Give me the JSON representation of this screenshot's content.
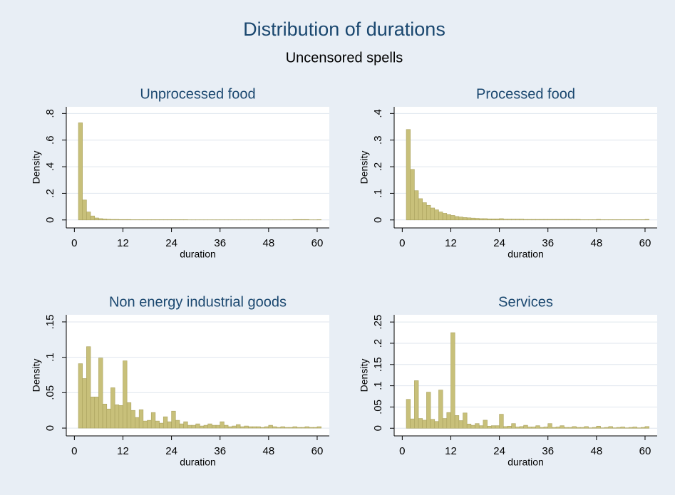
{
  "title": "Distribution of durations",
  "subtitle": "Uncensored spells",
  "chart_data": [
    {
      "type": "histogram",
      "title": "Unprocessed food",
      "xlabel": "duration",
      "ylabel": "Density",
      "color": "#c8c07a",
      "grid": true,
      "bins": [
        1,
        2,
        3,
        4,
        5,
        6,
        7,
        8,
        9,
        10,
        11,
        12,
        13,
        14,
        15,
        16,
        17,
        18,
        19,
        20,
        21,
        22,
        23,
        24,
        25,
        26,
        27,
        28,
        29,
        30,
        31,
        32,
        33,
        34,
        35,
        36,
        37,
        38,
        39,
        40,
        41,
        42,
        43,
        44,
        45,
        46,
        47,
        48,
        49,
        50,
        51,
        52,
        53,
        54,
        55,
        56,
        57,
        58,
        59,
        60,
        61
      ],
      "values": [
        0.73,
        0.15,
        0.06,
        0.03,
        0.015,
        0.01,
        0.007,
        0.005,
        0.004,
        0.004,
        0.003,
        0.003,
        0.003,
        0.002,
        0.002,
        0.002,
        0.002,
        0.002,
        0.002,
        0.002,
        0.002,
        0.002,
        0.002,
        0.002,
        0.002,
        0.002,
        0.002,
        0.001,
        0.001,
        0.001,
        0.001,
        0.001,
        0.001,
        0.001,
        0.001,
        0.001,
        0.001,
        0.001,
        0.001,
        0.001,
        0.001,
        0.001,
        0.001,
        0.001,
        0.001,
        0.001,
        0.001,
        0.001,
        0.001,
        0.001,
        0.001,
        0.001,
        0.001,
        0.003,
        0.003,
        0.003,
        0.003,
        0.001,
        0.001,
        0.002
      ],
      "xlim": [
        -2,
        63
      ],
      "ylim": [
        -0.06,
        0.85
      ],
      "xticks": [
        0,
        12,
        24,
        36,
        48,
        60
      ],
      "yticks": [
        0,
        {
          "value": 0.2,
          "label": ".2"
        },
        {
          "value": 0.4,
          "label": ".4"
        },
        {
          "value": 0.6,
          "label": ".6"
        },
        {
          "value": 0.8,
          "label": ".8"
        }
      ]
    },
    {
      "type": "histogram",
      "title": "Processed food",
      "xlabel": "duration",
      "ylabel": "Density",
      "color": "#c8c07a",
      "grid": true,
      "bins": [
        1,
        2,
        3,
        4,
        5,
        6,
        7,
        8,
        9,
        10,
        11,
        12,
        13,
        14,
        15,
        16,
        17,
        18,
        19,
        20,
        21,
        22,
        23,
        24,
        25,
        26,
        27,
        28,
        29,
        30,
        31,
        32,
        33,
        34,
        35,
        36,
        37,
        38,
        39,
        40,
        41,
        42,
        43,
        44,
        45,
        46,
        47,
        48,
        49,
        50,
        51,
        52,
        53,
        54,
        55,
        56,
        57,
        58,
        59,
        60,
        61
      ],
      "values": [
        0.34,
        0.19,
        0.11,
        0.08,
        0.065,
        0.055,
        0.045,
        0.038,
        0.03,
        0.025,
        0.02,
        0.017,
        0.013,
        0.011,
        0.009,
        0.008,
        0.007,
        0.006,
        0.005,
        0.005,
        0.004,
        0.004,
        0.004,
        0.005,
        0.003,
        0.003,
        0.003,
        0.003,
        0.003,
        0.002,
        0.002,
        0.002,
        0.002,
        0.002,
        0.002,
        0.002,
        0.002,
        0.002,
        0.002,
        0.002,
        0.002,
        0.002,
        0.002,
        0.001,
        0.001,
        0.001,
        0.001,
        0.002,
        0.001,
        0.001,
        0.001,
        0.001,
        0.001,
        0.001,
        0.001,
        0.001,
        0.001,
        0.001,
        0.001,
        0.002
      ],
      "xlim": [
        -2,
        63
      ],
      "ylim": [
        -0.03,
        0.425
      ],
      "xticks": [
        0,
        12,
        24,
        36,
        48,
        60
      ],
      "yticks": [
        0,
        {
          "value": 0.1,
          "label": ".1"
        },
        {
          "value": 0.2,
          "label": ".2"
        },
        {
          "value": 0.3,
          "label": ".3"
        },
        {
          "value": 0.4,
          "label": ".4"
        }
      ]
    },
    {
      "type": "histogram",
      "title": "Non energy industrial goods",
      "xlabel": "duration",
      "ylabel": "Density",
      "color": "#c8c07a",
      "grid": true,
      "bins": [
        1,
        2,
        3,
        4,
        5,
        6,
        7,
        8,
        9,
        10,
        11,
        12,
        13,
        14,
        15,
        16,
        17,
        18,
        19,
        20,
        21,
        22,
        23,
        24,
        25,
        26,
        27,
        28,
        29,
        30,
        31,
        32,
        33,
        34,
        35,
        36,
        37,
        38,
        39,
        40,
        41,
        42,
        43,
        44,
        45,
        46,
        47,
        48,
        49,
        50,
        51,
        52,
        53,
        54,
        55,
        56,
        57,
        58,
        59,
        60,
        61
      ],
      "values": [
        0.091,
        0.07,
        0.115,
        0.044,
        0.044,
        0.099,
        0.034,
        0.027,
        0.057,
        0.033,
        0.032,
        0.095,
        0.036,
        0.025,
        0.015,
        0.026,
        0.01,
        0.011,
        0.022,
        0.01,
        0.007,
        0.016,
        0.009,
        0.024,
        0.011,
        0.006,
        0.009,
        0.004,
        0.004,
        0.006,
        0.003,
        0.004,
        0.006,
        0.004,
        0.004,
        0.009,
        0.004,
        0.002,
        0.003,
        0.005,
        0.002,
        0.003,
        0.002,
        0.002,
        0.002,
        0.001,
        0.002,
        0.004,
        0.002,
        0.001,
        0.002,
        0.001,
        0.001,
        0.002,
        0.001,
        0.001,
        0.002,
        0.001,
        0.001,
        0.002
      ],
      "xlim": [
        -2,
        63
      ],
      "ylim": [
        -0.011,
        0.16
      ],
      "xticks": [
        0,
        12,
        24,
        36,
        48,
        60
      ],
      "yticks": [
        0,
        {
          "value": 0.05,
          "label": ".05"
        },
        {
          "value": 0.1,
          "label": ".1"
        },
        {
          "value": 0.15,
          "label": ".15"
        }
      ]
    },
    {
      "type": "histogram",
      "title": "Services",
      "xlabel": "duration",
      "ylabel": "Density",
      "color": "#c8c07a",
      "grid": true,
      "bins": [
        1,
        2,
        3,
        4,
        5,
        6,
        7,
        8,
        9,
        10,
        11,
        12,
        13,
        14,
        15,
        16,
        17,
        18,
        19,
        20,
        21,
        22,
        23,
        24,
        25,
        26,
        27,
        28,
        29,
        30,
        31,
        32,
        33,
        34,
        35,
        36,
        37,
        38,
        39,
        40,
        41,
        42,
        43,
        44,
        45,
        46,
        47,
        48,
        49,
        50,
        51,
        52,
        53,
        54,
        55,
        56,
        57,
        58,
        59,
        60,
        61
      ],
      "values": [
        0.068,
        0.022,
        0.112,
        0.023,
        0.019,
        0.085,
        0.021,
        0.016,
        0.09,
        0.023,
        0.037,
        0.225,
        0.03,
        0.018,
        0.036,
        0.01,
        0.007,
        0.011,
        0.006,
        0.019,
        0.005,
        0.006,
        0.006,
        0.033,
        0.004,
        0.005,
        0.011,
        0.003,
        0.004,
        0.007,
        0.003,
        0.003,
        0.006,
        0.002,
        0.003,
        0.011,
        0.002,
        0.003,
        0.006,
        0.002,
        0.002,
        0.004,
        0.002,
        0.002,
        0.004,
        0.001,
        0.002,
        0.005,
        0.001,
        0.002,
        0.004,
        0.001,
        0.002,
        0.003,
        0.001,
        0.002,
        0.003,
        0.001,
        0.002,
        0.004
      ],
      "xlim": [
        -2,
        63
      ],
      "ylim": [
        -0.018,
        0.267
      ],
      "xticks": [
        0,
        12,
        24,
        36,
        48,
        60
      ],
      "yticks": [
        0,
        {
          "value": 0.05,
          "label": ".05"
        },
        {
          "value": 0.1,
          "label": ".1"
        },
        {
          "value": 0.15,
          "label": ".15"
        },
        {
          "value": 0.2,
          "label": ".2"
        },
        {
          "value": 0.25,
          "label": ".25"
        }
      ]
    }
  ]
}
